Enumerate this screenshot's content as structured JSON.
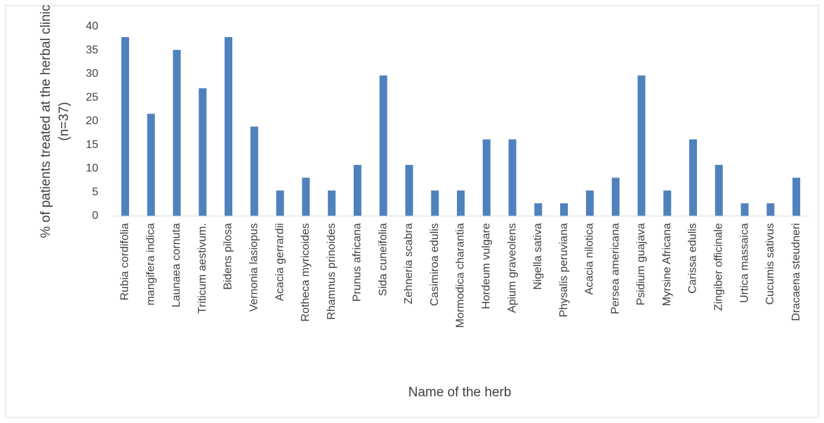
{
  "chart_data": {
    "type": "bar",
    "ylabel": [
      "% of patients treated at the herbal clinic",
      "(n=37)"
    ],
    "xlabel": "Name of the herb",
    "categories": [
      "Rubia cordifolia",
      "mangifera indica",
      "Launaea cornuta",
      "Triticum aestivum.",
      "Bidens pilosa",
      "Vernonia lasiopus",
      "Acacia gerrardii",
      "Rotheca myricoides",
      "Rhamnus  prinoides",
      "Prunus africana",
      "Sida cuneifolia",
      "Zehneria  scabra",
      "Casimiroa edulis",
      "Mormodica charantia",
      "Hordeum vulgare",
      "Apium graveolens",
      "Nigella sativa",
      "Physalis peruviana",
      "Acacia nilotica",
      "Persea americana",
      "Psidium  guajava",
      "Myrsine Africana",
      "Carissa edulis",
      "Zingiber officinale",
      "Urtica massaica",
      "Cucumis sativus",
      "Dracaena steudneri"
    ],
    "values": [
      37.8,
      21.6,
      35.1,
      27.0,
      37.8,
      18.9,
      5.4,
      8.1,
      5.4,
      10.8,
      29.7,
      10.8,
      5.4,
      5.4,
      16.2,
      16.2,
      2.7,
      2.7,
      5.4,
      8.1,
      29.7,
      5.4,
      16.2,
      10.8,
      2.7,
      2.7,
      8.1
    ],
    "color": "#4f81bd",
    "ylim": [
      0,
      40
    ],
    "yticks": [
      0,
      5,
      10,
      15,
      20,
      25,
      30,
      35,
      40
    ],
    "grid": false
  }
}
